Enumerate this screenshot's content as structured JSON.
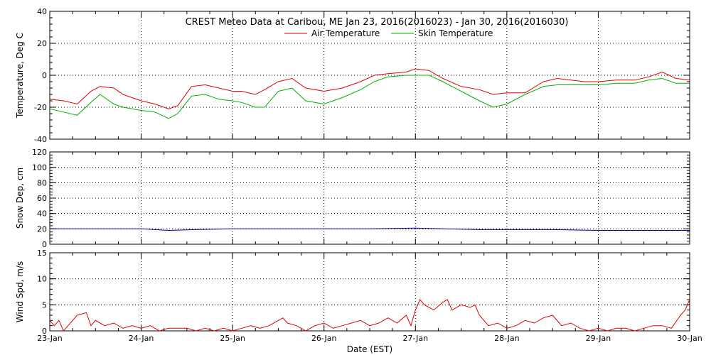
{
  "title": "CREST Meteo Data at Caribou, ME   Jan 23, 2016(2016023) - Jan 30, 2016(2016030)",
  "xlabel": "Date (EST)",
  "colors": {
    "air": "#e00000",
    "skin": "#00b000",
    "snow": "#00008b",
    "wind": "#e00000"
  },
  "chart_data": [
    {
      "type": "line",
      "ylabel": "Temperature, Deg C",
      "ylim": [
        -40,
        40
      ],
      "yticks": [
        -40,
        -20,
        0,
        20,
        40
      ],
      "xlim": [
        0,
        7
      ],
      "x_categories": [
        "23-Jan",
        "24-Jan",
        "25-Jan",
        "26-Jan",
        "27-Jan",
        "28-Jan",
        "29-Jan",
        "30-Jan"
      ],
      "legend": "top-center",
      "grid": true,
      "series": [
        {
          "name": "Air Temperature",
          "x": [
            0,
            0.15,
            0.3,
            0.45,
            0.55,
            0.7,
            0.8,
            1.0,
            1.15,
            1.3,
            1.4,
            1.55,
            1.7,
            1.85,
            2.0,
            2.1,
            2.25,
            2.35,
            2.5,
            2.65,
            2.8,
            3.0,
            3.2,
            3.4,
            3.55,
            3.7,
            3.9,
            4.0,
            4.15,
            4.3,
            4.5,
            4.7,
            4.85,
            5.0,
            5.2,
            5.4,
            5.55,
            5.7,
            5.85,
            6.0,
            6.2,
            6.4,
            6.55,
            6.7,
            6.85,
            7.0
          ],
          "values": [
            -15,
            -16,
            -18,
            -10,
            -7,
            -8,
            -12,
            -16,
            -18,
            -21,
            -19,
            -7,
            -6,
            -8,
            -10,
            -10,
            -12,
            -9,
            -4,
            -2,
            -8,
            -10,
            -8,
            -4,
            0,
            1,
            2,
            4,
            3,
            -2,
            -7,
            -9,
            -12,
            -11,
            -11,
            -4,
            -2,
            -3,
            -4,
            -4,
            -3,
            -3,
            -1,
            2,
            -2,
            -3
          ]
        },
        {
          "name": "Skin Temperature",
          "x": [
            0,
            0.15,
            0.3,
            0.45,
            0.55,
            0.7,
            0.8,
            1.0,
            1.15,
            1.3,
            1.4,
            1.55,
            1.7,
            1.85,
            2.0,
            2.1,
            2.25,
            2.35,
            2.5,
            2.65,
            2.8,
            3.0,
            3.2,
            3.4,
            3.55,
            3.7,
            3.9,
            4.0,
            4.15,
            4.3,
            4.5,
            4.7,
            4.85,
            5.0,
            5.2,
            5.4,
            5.55,
            5.7,
            5.85,
            6.0,
            6.2,
            6.4,
            6.55,
            6.7,
            6.85,
            7.0
          ],
          "values": [
            -21,
            -23,
            -25,
            -17,
            -12,
            -18,
            -20,
            -22,
            -23,
            -27,
            -24,
            -13,
            -12,
            -15,
            -16,
            -17,
            -20,
            -20,
            -10,
            -8,
            -16,
            -18,
            -14,
            -9,
            -4,
            -1,
            0,
            0,
            0,
            -4,
            -10,
            -16,
            -20,
            -18,
            -12,
            -7,
            -6,
            -6,
            -6,
            -6,
            -5,
            -5,
            -3,
            -2,
            -5,
            -5
          ]
        }
      ]
    },
    {
      "type": "line",
      "ylabel": "Snow Dep, cm",
      "ylim": [
        0,
        120
      ],
      "yticks": [
        0,
        20,
        40,
        60,
        80,
        100,
        120
      ],
      "xlim": [
        0,
        7
      ],
      "grid": true,
      "series": [
        {
          "x": [
            0,
            0.5,
            1.0,
            1.3,
            1.6,
            2.0,
            2.5,
            3.0,
            3.5,
            4.0,
            4.3,
            4.7,
            5.0,
            5.5,
            6.0,
            6.5,
            7.0
          ],
          "values": [
            20,
            20,
            20,
            18,
            19,
            20,
            20,
            20,
            20,
            21,
            20,
            19,
            19,
            19,
            18,
            18,
            18
          ]
        }
      ]
    },
    {
      "type": "line",
      "ylabel": "Wind Spd, m/s",
      "ylim": [
        0,
        15
      ],
      "yticks": [
        0,
        5,
        10,
        15
      ],
      "xlim": [
        0,
        7
      ],
      "grid": true,
      "series": [
        {
          "x": [
            0,
            0.05,
            0.1,
            0.15,
            0.2,
            0.3,
            0.4,
            0.45,
            0.5,
            0.6,
            0.7,
            0.8,
            0.9,
            1.0,
            1.1,
            1.2,
            1.3,
            1.4,
            1.5,
            1.6,
            1.7,
            1.8,
            1.9,
            2.0,
            2.1,
            2.2,
            2.3,
            2.4,
            2.5,
            2.55,
            2.6,
            2.7,
            2.8,
            2.9,
            3.0,
            3.1,
            3.2,
            3.3,
            3.4,
            3.5,
            3.6,
            3.7,
            3.8,
            3.9,
            3.95,
            4.0,
            4.05,
            4.1,
            4.2,
            4.3,
            4.35,
            4.4,
            4.5,
            4.6,
            4.65,
            4.7,
            4.8,
            4.9,
            5.0,
            5.1,
            5.2,
            5.3,
            5.4,
            5.5,
            5.6,
            5.7,
            5.8,
            5.9,
            6.0,
            6.1,
            6.2,
            6.3,
            6.4,
            6.5,
            6.6,
            6.7,
            6.8,
            6.9,
            6.95,
            7.0
          ],
          "values": [
            2,
            1,
            2,
            0,
            1,
            3,
            3.5,
            1,
            2,
            1,
            1.5,
            0.5,
            1,
            0.5,
            1,
            0,
            0.5,
            0.5,
            0.5,
            0,
            0.5,
            0,
            0.5,
            0,
            0.5,
            1,
            0.5,
            1,
            2,
            2.5,
            1.5,
            1,
            0,
            1,
            1.5,
            0.5,
            1,
            1.5,
            2,
            1,
            1.5,
            2.5,
            1.5,
            3,
            1,
            4,
            6,
            5,
            4,
            5.5,
            6,
            4,
            5,
            4.5,
            5,
            3,
            1,
            1.5,
            0.5,
            1,
            2,
            1.5,
            2.5,
            3,
            1,
            1.5,
            0.5,
            0,
            0.5,
            0,
            0.5,
            0.5,
            0,
            0.5,
            1,
            1,
            0.5,
            3,
            4,
            6
          ]
        }
      ]
    }
  ]
}
